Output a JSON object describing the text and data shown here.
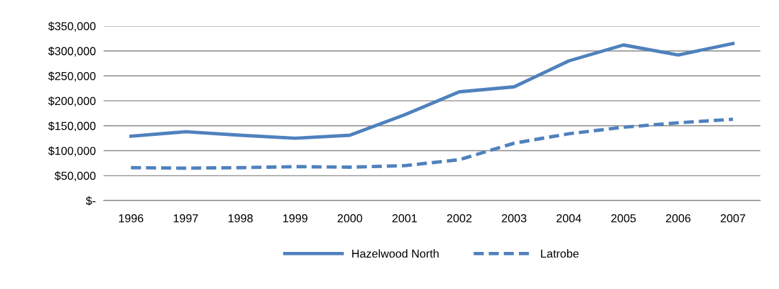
{
  "chart_data": {
    "type": "line",
    "categories": [
      "1996",
      "1997",
      "1998",
      "1999",
      "2000",
      "2001",
      "2002",
      "2003",
      "2004",
      "2005",
      "2006",
      "2007"
    ],
    "series": [
      {
        "name": "Hazelwood North",
        "color": "#4f81bd",
        "line_style": "solid",
        "values": [
          129000,
          138000,
          131000,
          125000,
          131000,
          172000,
          218000,
          228000,
          280000,
          312000,
          292000,
          315000
        ]
      },
      {
        "name": "Latrobe",
        "color": "#4f81bd",
        "line_style": "dashed",
        "values": [
          66000,
          65000,
          66000,
          68000,
          67000,
          70000,
          82000,
          115000,
          134000,
          147000,
          156000,
          163000
        ]
      }
    ],
    "ylim": [
      0,
      350000
    ],
    "yticks": [
      {
        "value": 0,
        "label": "$-"
      },
      {
        "value": 50000,
        "label": "$50,000"
      },
      {
        "value": 100000,
        "label": "$100,000"
      },
      {
        "value": 150000,
        "label": "$150,000"
      },
      {
        "value": 200000,
        "label": "$200,000"
      },
      {
        "value": 250000,
        "label": "$250,000"
      },
      {
        "value": 300000,
        "label": "$300,000"
      },
      {
        "value": 350000,
        "label": "$350,000"
      }
    ],
    "grid": "y",
    "legend": "bottom",
    "marker": "none"
  }
}
